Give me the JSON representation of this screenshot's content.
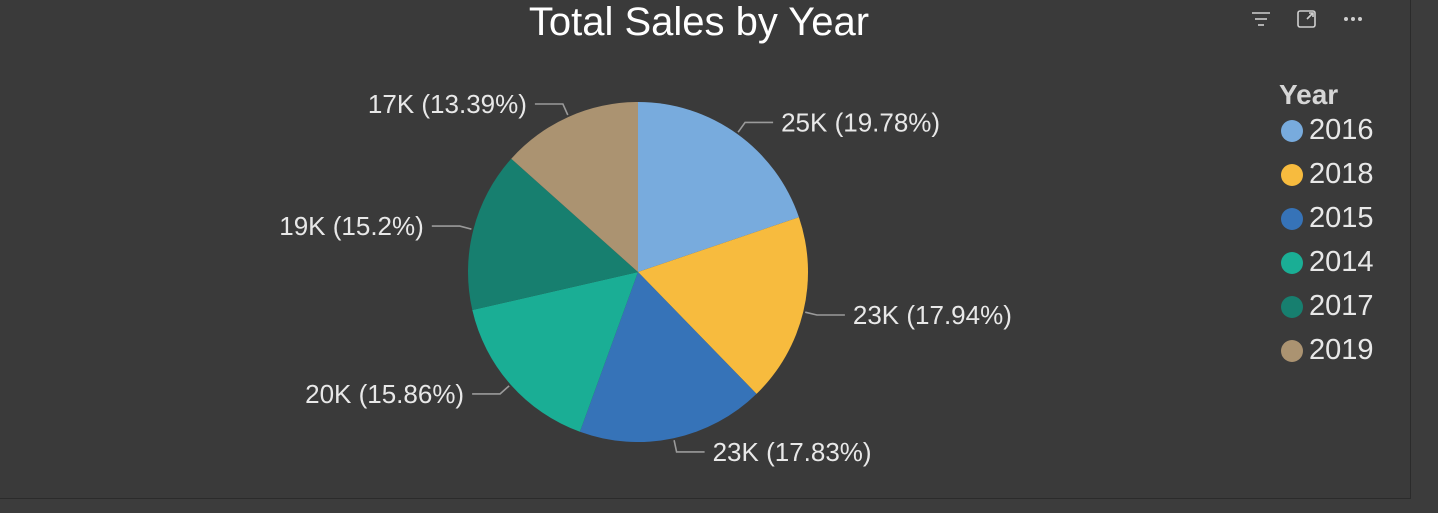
{
  "toolbar": {
    "filter_icon": "filter-icon",
    "focus_icon": "focus-mode-icon",
    "more_icon": "more-options-icon"
  },
  "colors": {
    "background": "#3a3a3a",
    "label_text": "#e8e8e8",
    "leader_line": "#9a9a9a"
  },
  "chart_data": {
    "type": "pie",
    "title": "Total Sales by Year",
    "legend_title": "Year",
    "legend_position": "right",
    "slices": [
      {
        "name": "2016",
        "value": 25,
        "percent": 19.78,
        "label": "25K (19.78%)",
        "color": "#78abdd"
      },
      {
        "name": "2018",
        "value": 23,
        "percent": 17.94,
        "label": "23K (17.94%)",
        "color": "#f7bb3e"
      },
      {
        "name": "2015",
        "value": 23,
        "percent": 17.83,
        "label": "23K (17.83%)",
        "color": "#3673b8"
      },
      {
        "name": "2014",
        "value": 20,
        "percent": 15.86,
        "label": "20K (15.86%)",
        "color": "#1aae95"
      },
      {
        "name": "2017",
        "value": 19,
        "percent": 15.2,
        "label": "19K (15.2%)",
        "color": "#177f6f"
      },
      {
        "name": "2019",
        "value": 17,
        "percent": 13.39,
        "label": "17K (13.39%)",
        "color": "#ab9371"
      }
    ]
  }
}
